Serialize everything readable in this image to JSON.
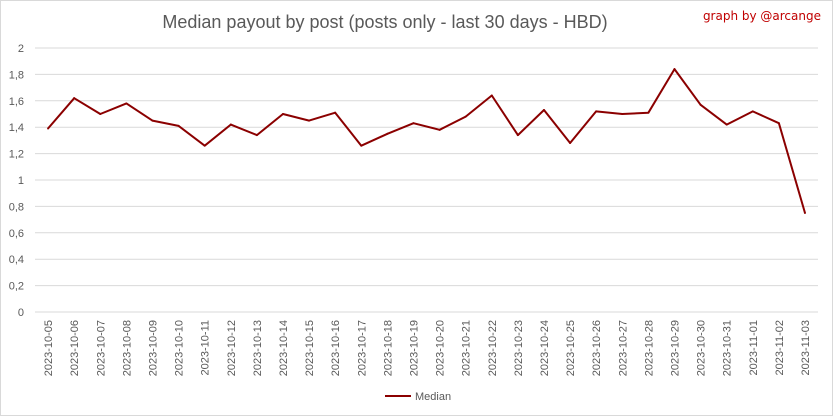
{
  "title": "Median payout by post (posts only - last 30 days - HBD)",
  "credit": "graph by @arcange",
  "colors": {
    "series": "#8b0000",
    "grid": "#d9d9d9",
    "text": "#595959",
    "credit": "#c00000"
  },
  "chart_data": {
    "type": "line",
    "title": "Median payout by post (posts only - last 30 days - HBD)",
    "xlabel": "",
    "ylabel": "",
    "ylim": [
      0,
      2
    ],
    "yticks": [
      "0",
      "0,2",
      "0,4",
      "0,6",
      "0,8",
      "1",
      "1,2",
      "1,4",
      "1,6",
      "1,8",
      "2"
    ],
    "grid": true,
    "legend": "bottom",
    "categories": [
      "2023-10-05",
      "2023-10-06",
      "2023-10-07",
      "2023-10-08",
      "2023-10-09",
      "2023-10-10",
      "2023-10-11",
      "2023-10-12",
      "2023-10-13",
      "2023-10-14",
      "2023-10-15",
      "2023-10-16",
      "2023-10-17",
      "2023-10-18",
      "2023-10-19",
      "2023-10-20",
      "2023-10-21",
      "2023-10-22",
      "2023-10-23",
      "2023-10-24",
      "2023-10-25",
      "2023-10-26",
      "2023-10-27",
      "2023-10-28",
      "2023-10-29",
      "2023-10-30",
      "2023-10-31",
      "2023-11-01",
      "2023-11-02",
      "2023-11-03"
    ],
    "series": [
      {
        "name": "Median",
        "values": [
          1.39,
          1.62,
          1.5,
          1.58,
          1.45,
          1.41,
          1.26,
          1.42,
          1.34,
          1.5,
          1.45,
          1.51,
          1.26,
          1.35,
          1.43,
          1.38,
          1.48,
          1.64,
          1.34,
          1.53,
          1.28,
          1.52,
          1.5,
          1.51,
          1.84,
          1.57,
          1.42,
          1.52,
          1.43,
          0.75
        ]
      }
    ]
  }
}
